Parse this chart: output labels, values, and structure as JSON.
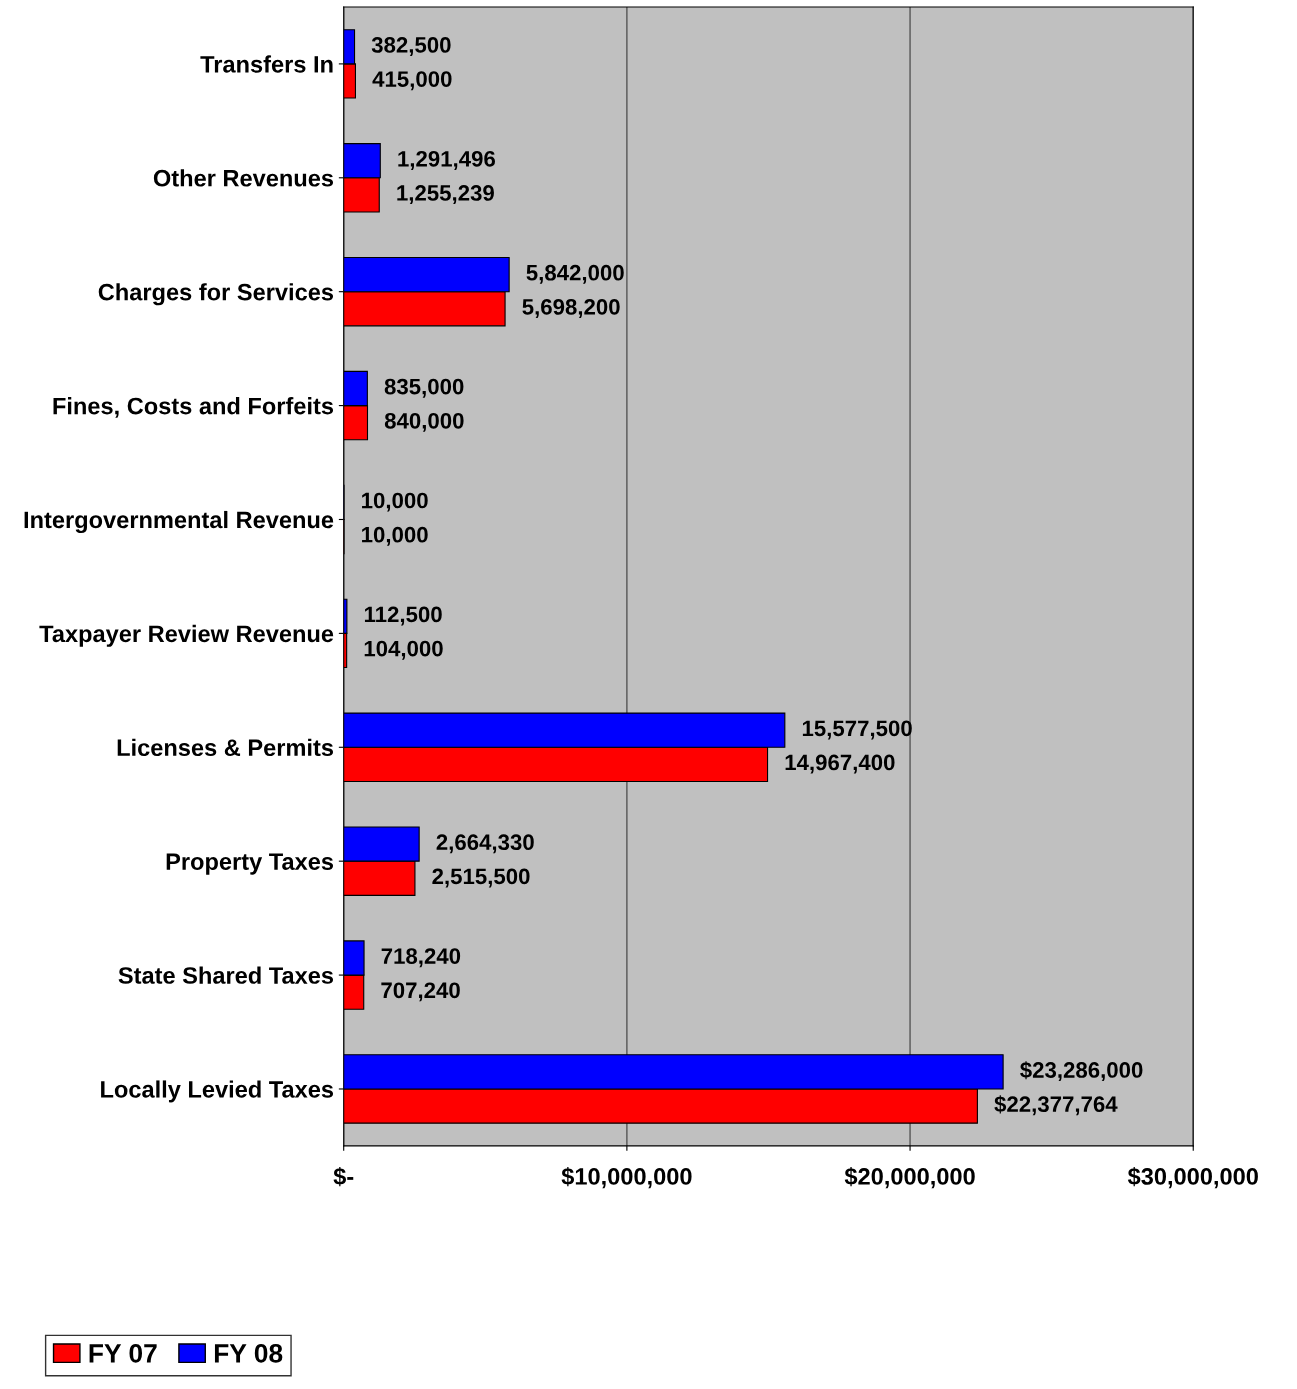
{
  "chart_data": {
    "type": "bar",
    "orientation": "horizontal",
    "categories": [
      "Transfers In",
      "Other Revenues",
      "Charges for Services",
      "Fines, Costs and Forfeits",
      "Intergovernmental Revenue",
      "Taxpayer Review Revenue",
      "Licenses & Permits",
      "Property Taxes",
      "State Shared Taxes",
      "Locally Levied Taxes"
    ],
    "series": [
      {
        "name": "FY 07",
        "color": "#ff0000",
        "values": [
          415000,
          1255239,
          5698200,
          840000,
          10000,
          104000,
          14967400,
          2515500,
          707240,
          22377764
        ],
        "value_labels": [
          "415,000",
          "1,255,239",
          "5,698,200",
          "840,000",
          "10,000",
          "104,000",
          "14,967,400",
          "2,515,500",
          "707,240",
          "$22,377,764"
        ]
      },
      {
        "name": "FY 08",
        "color": "#0000ff",
        "values": [
          382500,
          1291496,
          5842000,
          835000,
          10000,
          112500,
          15577500,
          2664330,
          718240,
          23286000
        ],
        "value_labels": [
          "382,500",
          "1,291,496",
          "5,842,000",
          "835,000",
          "10,000",
          "112,500",
          "15,577,500",
          "2,664,330",
          "718,240",
          "$23,286,000"
        ]
      }
    ],
    "xlim": [
      0,
      30000000
    ],
    "xticks": [
      {
        "value": 0,
        "label": "$-"
      },
      {
        "value": 10000000,
        "label": "$10,000,000"
      },
      {
        "value": 20000000,
        "label": "$20,000,000"
      },
      {
        "value": 30000000,
        "label": "$30,000,000"
      }
    ],
    "grid": "x",
    "legend": "bottom left"
  }
}
